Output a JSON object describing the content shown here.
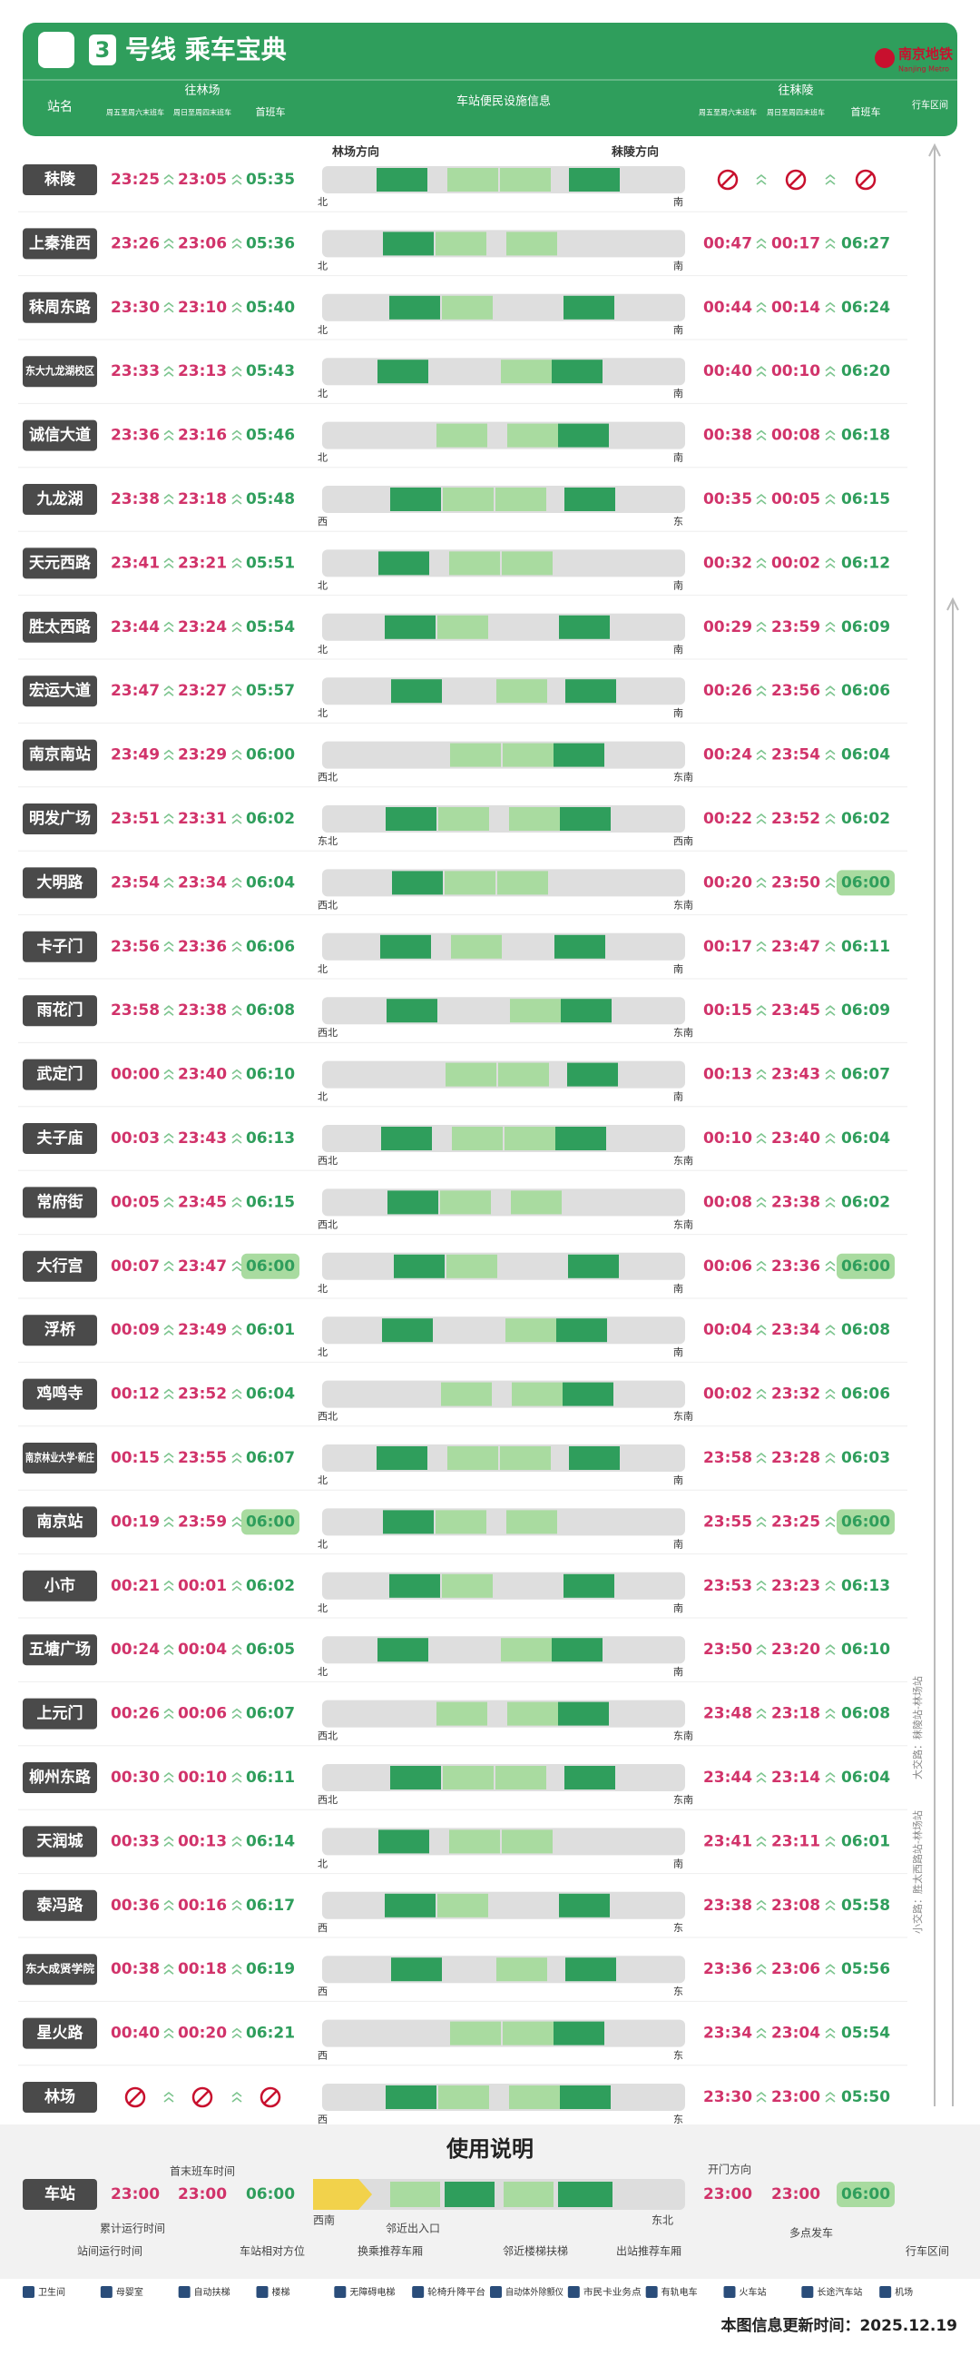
{
  "header": {
    "line_number": "3",
    "title": "号线 乘车宝典",
    "logo_text": "南京地铁",
    "logo_subtext": "Nanjing Metro"
  },
  "columns": {
    "station": "站名",
    "to_linchang": "往林场",
    "to_moling": "往秣陵",
    "fri_sat_last": "周五至周六末班车",
    "sun_thu_last": "周日至周四末班车",
    "first": "首班车",
    "facilities": "车站便民设施信息",
    "section": "行车区间"
  },
  "directions": {
    "left": "林场方向",
    "right": "秣陵方向"
  },
  "routes": [
    "小交路：胜太西路站-林场站",
    "大交路：秣陵站-林场站"
  ],
  "stations": [
    {
      "name": "秣陵",
      "to_linchang": [
        "23:25",
        "23:05",
        "05:35"
      ],
      "to_moling": [
        null,
        null,
        null
      ],
      "dir": [
        "北",
        "南"
      ]
    },
    {
      "name": "上秦淮西",
      "to_linchang": [
        "23:26",
        "23:06",
        "05:36"
      ],
      "to_moling": [
        "00:47",
        "00:17",
        "06:27"
      ],
      "dir": [
        "北",
        "南"
      ]
    },
    {
      "name": "秣周东路",
      "to_linchang": [
        "23:30",
        "23:10",
        "05:40"
      ],
      "to_moling": [
        "00:44",
        "00:14",
        "06:24"
      ],
      "dir": [
        "北",
        "南"
      ]
    },
    {
      "name": "东大九龙湖校区",
      "to_linchang": [
        "23:33",
        "23:13",
        "05:43"
      ],
      "to_moling": [
        "00:40",
        "00:10",
        "06:20"
      ],
      "dir": [
        "北",
        "南"
      ]
    },
    {
      "name": "诚信大道",
      "to_linchang": [
        "23:36",
        "23:16",
        "05:46"
      ],
      "to_moling": [
        "00:38",
        "00:08",
        "06:18"
      ],
      "dir": [
        "北",
        "南"
      ]
    },
    {
      "name": "九龙湖",
      "to_linchang": [
        "23:38",
        "23:18",
        "05:48"
      ],
      "to_moling": [
        "00:35",
        "00:05",
        "06:15"
      ],
      "dir": [
        "西",
        "东"
      ]
    },
    {
      "name": "天元西路",
      "to_linchang": [
        "23:41",
        "23:21",
        "05:51"
      ],
      "to_moling": [
        "00:32",
        "00:02",
        "06:12"
      ],
      "dir": [
        "北",
        "南"
      ]
    },
    {
      "name": "胜太西路",
      "to_linchang": [
        "23:44",
        "23:24",
        "05:54"
      ],
      "to_moling": [
        "00:29",
        "23:59",
        "06:09"
      ],
      "dir": [
        "北",
        "南"
      ]
    },
    {
      "name": "宏运大道",
      "to_linchang": [
        "23:47",
        "23:27",
        "05:57"
      ],
      "to_moling": [
        "00:26",
        "23:56",
        "06:06"
      ],
      "dir": [
        "北",
        "南"
      ]
    },
    {
      "name": "南京南站",
      "to_linchang": [
        "23:49",
        "23:29",
        "06:00"
      ],
      "to_moling": [
        "00:24",
        "23:54",
        "06:04"
      ],
      "dir": [
        "西北",
        "东南"
      ]
    },
    {
      "name": "明发广场",
      "to_linchang": [
        "23:51",
        "23:31",
        "06:02"
      ],
      "to_moling": [
        "00:22",
        "23:52",
        "06:02"
      ],
      "dir": [
        "东北",
        "西南"
      ]
    },
    {
      "name": "大明路",
      "to_linchang": [
        "23:54",
        "23:34",
        "06:04"
      ],
      "to_moling": [
        "00:20",
        "23:50",
        "06:00"
      ],
      "dir": [
        "西北",
        "东南"
      ],
      "multi": [
        false,
        true
      ]
    },
    {
      "name": "卡子门",
      "to_linchang": [
        "23:56",
        "23:36",
        "06:06"
      ],
      "to_moling": [
        "00:17",
        "23:47",
        "06:11"
      ],
      "dir": [
        "北",
        "南"
      ]
    },
    {
      "name": "雨花门",
      "to_linchang": [
        "23:58",
        "23:38",
        "06:08"
      ],
      "to_moling": [
        "00:15",
        "23:45",
        "06:09"
      ],
      "dir": [
        "西北",
        "东南"
      ]
    },
    {
      "name": "武定门",
      "to_linchang": [
        "00:00",
        "23:40",
        "06:10"
      ],
      "to_moling": [
        "00:13",
        "23:43",
        "06:07"
      ],
      "dir": [
        "北",
        "南"
      ]
    },
    {
      "name": "夫子庙",
      "to_linchang": [
        "00:03",
        "23:43",
        "06:13"
      ],
      "to_moling": [
        "00:10",
        "23:40",
        "06:04"
      ],
      "dir": [
        "西北",
        "东南"
      ]
    },
    {
      "name": "常府街",
      "to_linchang": [
        "00:05",
        "23:45",
        "06:15"
      ],
      "to_moling": [
        "00:08",
        "23:38",
        "06:02"
      ],
      "dir": [
        "西北",
        "东南"
      ]
    },
    {
      "name": "大行宫",
      "to_linchang": [
        "00:07",
        "23:47",
        "06:00"
      ],
      "to_moling": [
        "00:06",
        "23:36",
        "06:00"
      ],
      "dir": [
        "北",
        "南"
      ],
      "multi": [
        true,
        true
      ]
    },
    {
      "name": "浮桥",
      "to_linchang": [
        "00:09",
        "23:49",
        "06:01"
      ],
      "to_moling": [
        "00:04",
        "23:34",
        "06:08"
      ],
      "dir": [
        "北",
        "南"
      ]
    },
    {
      "name": "鸡鸣寺",
      "to_linchang": [
        "00:12",
        "23:52",
        "06:04"
      ],
      "to_moling": [
        "00:02",
        "23:32",
        "06:06"
      ],
      "dir": [
        "西北",
        "东南"
      ]
    },
    {
      "name": "南京林业大学·新庄",
      "to_linchang": [
        "00:15",
        "23:55",
        "06:07"
      ],
      "to_moling": [
        "23:58",
        "23:28",
        "06:03"
      ],
      "dir": [
        "北",
        "南"
      ]
    },
    {
      "name": "南京站",
      "to_linchang": [
        "00:19",
        "23:59",
        "06:00"
      ],
      "to_moling": [
        "23:55",
        "23:25",
        "06:00"
      ],
      "dir": [
        "北",
        "南"
      ],
      "multi": [
        true,
        true
      ]
    },
    {
      "name": "小市",
      "to_linchang": [
        "00:21",
        "00:01",
        "06:02"
      ],
      "to_moling": [
        "23:53",
        "23:23",
        "06:13"
      ],
      "dir": [
        "北",
        "南"
      ]
    },
    {
      "name": "五塘广场",
      "to_linchang": [
        "00:24",
        "00:04",
        "06:05"
      ],
      "to_moling": [
        "23:50",
        "23:20",
        "06:10"
      ],
      "dir": [
        "北",
        "南"
      ]
    },
    {
      "name": "上元门",
      "to_linchang": [
        "00:26",
        "00:06",
        "06:07"
      ],
      "to_moling": [
        "23:48",
        "23:18",
        "06:08"
      ],
      "dir": [
        "西北",
        "东南"
      ]
    },
    {
      "name": "柳州东路",
      "to_linchang": [
        "00:30",
        "00:10",
        "06:11"
      ],
      "to_moling": [
        "23:44",
        "23:14",
        "06:04"
      ],
      "dir": [
        "西北",
        "东南"
      ]
    },
    {
      "name": "天润城",
      "to_linchang": [
        "00:33",
        "00:13",
        "06:14"
      ],
      "to_moling": [
        "23:41",
        "23:11",
        "06:01"
      ],
      "dir": [
        "北",
        "南"
      ]
    },
    {
      "name": "泰冯路",
      "to_linchang": [
        "00:36",
        "00:16",
        "06:17"
      ],
      "to_moling": [
        "23:38",
        "23:08",
        "05:58"
      ],
      "dir": [
        "西",
        "东"
      ]
    },
    {
      "name": "东大成贤学院",
      "to_linchang": [
        "00:38",
        "00:18",
        "06:19"
      ],
      "to_moling": [
        "23:36",
        "23:06",
        "05:56"
      ],
      "dir": [
        "西",
        "东"
      ]
    },
    {
      "name": "星火路",
      "to_linchang": [
        "00:40",
        "00:20",
        "06:21"
      ],
      "to_moling": [
        "23:34",
        "23:04",
        "05:54"
      ],
      "dir": [
        "西",
        "东"
      ]
    },
    {
      "name": "林场",
      "to_linchang": [
        null,
        null,
        null
      ],
      "to_moling": [
        "23:30",
        "23:00",
        "05:50"
      ],
      "dir": [
        "西",
        "东"
      ]
    }
  ],
  "usage": {
    "title": "使用说明",
    "station": "车站",
    "times_left": [
      "23:00",
      "23:00",
      "06:00"
    ],
    "times_right": [
      "23:00",
      "23:00",
      "06:00"
    ],
    "first_last_time": "首末班车时间",
    "cumulative_time": "累计运行时间",
    "interval_time": "站间运行时间",
    "relative_direction": "车站相对方位",
    "left_dir": "西南",
    "right_dir": "东北",
    "near_exit": "邻近出入口",
    "transfer_car": "换乘推荐车厢",
    "near_stairs": "邻近楼梯扶梯",
    "exit_car": "出站推荐车厢",
    "door_side": "开门方向",
    "multi_start": "多点发车",
    "section": "行车区间"
  },
  "legend": [
    "卫生间",
    "母婴室",
    "自动扶梯",
    "楼梯",
    "无障碍电梯",
    "轮椅升降平台",
    "自动体外除颤仪",
    "市民卡业务点",
    "有轨电车",
    "火车站",
    "长途汽车站",
    "机场"
  ],
  "footer": {
    "update": "本图信息更新时间：2025.12.19"
  }
}
